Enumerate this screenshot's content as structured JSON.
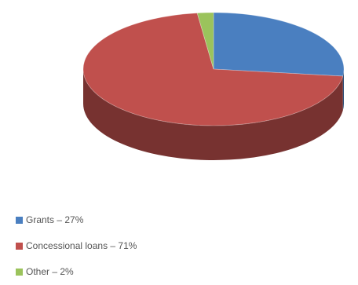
{
  "chart_data": {
    "type": "pie",
    "three_d": true,
    "legend_position": "bottom-left",
    "slices": [
      {
        "label": "Grants – 27%",
        "value": 27,
        "color": "#4a7fc0"
      },
      {
        "label": "Concessional loans – 71%",
        "value": 71,
        "color": "#c0504d"
      },
      {
        "label": "Other – 2%",
        "value": 2,
        "color": "#9bc35c"
      }
    ]
  }
}
